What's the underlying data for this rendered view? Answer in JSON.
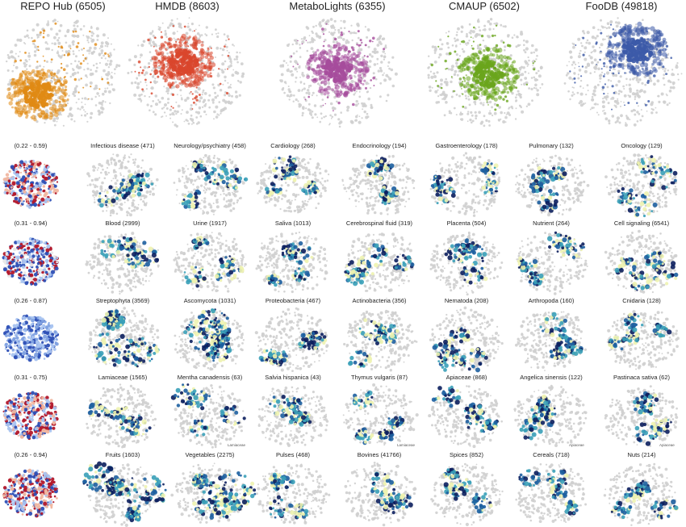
{
  "top_titles": [
    "REPO Hub (6505)",
    "HMDB (8603)",
    "MetaboLights (6355)",
    "CMAUP (6502)",
    "FooDB (49818)"
  ],
  "top_colors": [
    "#e08a14",
    "#d9462c",
    "#a64c9c",
    "#6aa51d",
    "#3c5aa8"
  ],
  "rows": [
    {
      "range": "(0.22 - 0.59)",
      "labels": [
        "Infectious disease (471)",
        "Neurology/psychiatry (458)",
        "Cardiology (268)",
        "Endocrinology (194)",
        "Gastroenterology (178)",
        "Pulmonary (132)",
        "Oncology (129)"
      ]
    },
    {
      "range": "(0.31 - 0.94)",
      "labels": [
        "Blood (2999)",
        "Urine (1917)",
        "Saliva (1013)",
        "Cerebrospinal fluid  (319)",
        "Placenta (504)",
        "Nutrient (264)",
        "Cell signaling (6541)"
      ]
    },
    {
      "range": "(0.26 - 0.87)",
      "labels": [
        "Streptophyta (3569)",
        "Ascomycota (1031)",
        "Proteobacteria (467)",
        "Actinobacteria (356)",
        "Nematoda (208)",
        "Arthropoda (160)",
        "Cnidaria (128)"
      ]
    },
    {
      "range": "(0.31 - 0.75)",
      "labels": [
        "Lamiaceae (1565)",
        "Mentha canadensis (63)",
        "Salvia hispanica (43)",
        "Thymus vulgaris (87)",
        "Apiaceae (868)",
        "Angelica sinensis (122)",
        "Pastinaca sativa (62)"
      ]
    },
    {
      "range": "(0.26 - 0.94)",
      "labels": [
        "Fruits (1603)",
        "Vegetables (2275)",
        "Pulses (468)",
        "Bovines (41766)",
        "Spices (852)",
        "Cereals (718)",
        "Nuts (214)"
      ]
    }
  ],
  "mini_labels": [
    {
      "row": 3,
      "col": 1,
      "text": "Lamiaceae"
    },
    {
      "row": 3,
      "col": 3,
      "text": "Lamiaceae"
    },
    {
      "row": 3,
      "col": 5,
      "text": "Apiaceae"
    },
    {
      "row": 3,
      "col": 6,
      "text": "Apiaceae"
    }
  ],
  "colors": {
    "grey_points": "#cfcfcf",
    "dark_navy": "#0c1f5e",
    "teal": "#3aa0b8",
    "light_yellow": "#eef3b0",
    "diverging_red": "#b2182b",
    "diverging_blue": "#2d4fb5",
    "diverging_light_blue": "#a9c4f0",
    "diverging_light_red": "#f0b6a0"
  }
}
